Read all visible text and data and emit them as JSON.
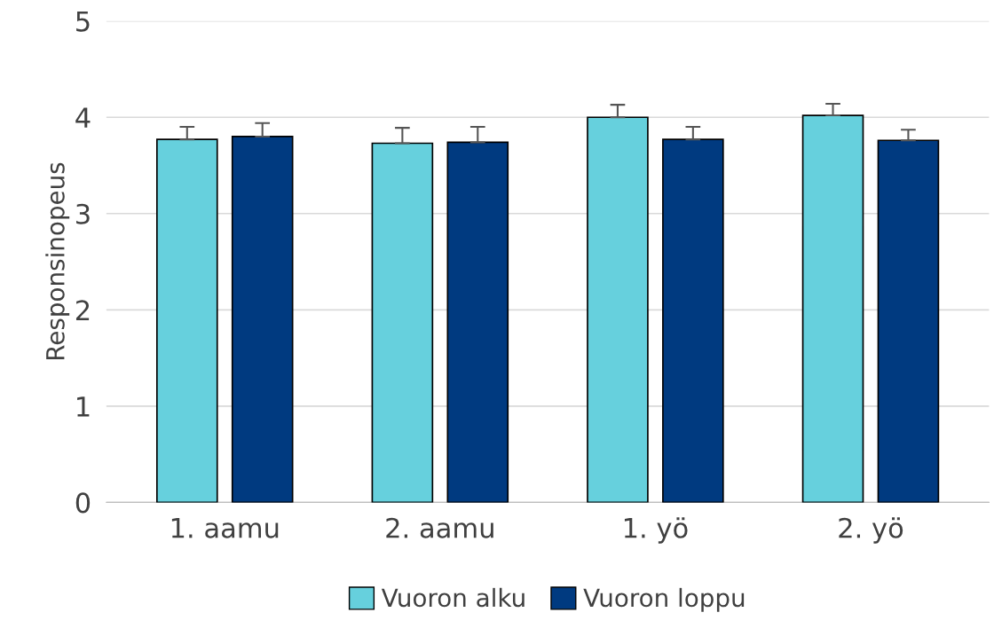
{
  "chart_data": {
    "type": "bar",
    "ylabel": "Responsinopeus",
    "categories": [
      "1. aamu",
      "2. aamu",
      "1. yö",
      "2. yö"
    ],
    "series": [
      {
        "name": "Vuoron alku",
        "color": "#66d0dd",
        "values": [
          3.77,
          3.73,
          4.0,
          4.02
        ],
        "errors": [
          [
            3.77,
            3.9
          ],
          [
            3.73,
            3.89
          ],
          [
            4.0,
            4.13
          ],
          [
            4.02,
            4.14
          ]
        ]
      },
      {
        "name": "Vuoron loppu",
        "color": "#003a80",
        "values": [
          3.8,
          3.74,
          3.77,
          3.76
        ],
        "errors": [
          [
            3.8,
            3.94
          ],
          [
            3.74,
            3.9
          ],
          [
            3.77,
            3.9
          ],
          [
            3.76,
            3.87
          ]
        ]
      }
    ],
    "ylim": [
      0,
      5
    ],
    "yticks": [
      0,
      1,
      2,
      3,
      4,
      5
    ],
    "grid": "y",
    "legend": "bottom"
  }
}
